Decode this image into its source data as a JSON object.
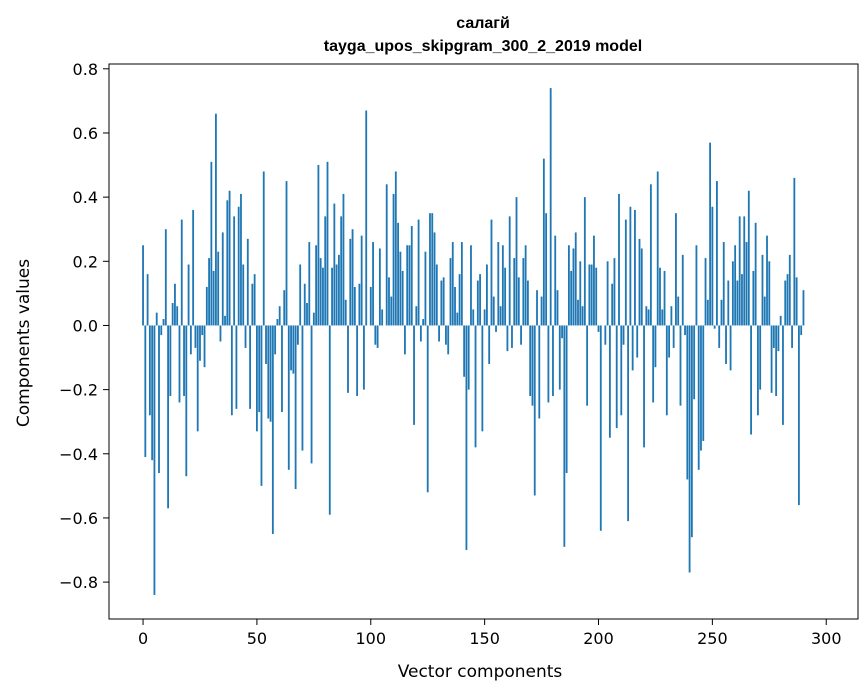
{
  "chart_data": {
    "type": "bar",
    "title_line1": "салагй",
    "title_line2": "tayga_upos_skipgram_300_2_2019 model",
    "xlabel": "Vector components",
    "ylabel": "Components values",
    "xlim": [
      -14.95,
      313.95
    ],
    "ylim": [
      -0.915,
      0.815
    ],
    "x_ticks": [
      0,
      50,
      100,
      150,
      200,
      250,
      300
    ],
    "x_tick_labels": [
      "0",
      "50",
      "100",
      "150",
      "200",
      "250",
      "300"
    ],
    "y_ticks": [
      -0.8,
      -0.6,
      -0.4,
      -0.2,
      0.0,
      0.2,
      0.4,
      0.6,
      0.8
    ],
    "y_tick_labels": [
      "−0.8",
      "−0.6",
      "−0.4",
      "−0.2",
      "0.0",
      "0.2",
      "0.4",
      "0.6",
      "0.8"
    ],
    "bar_color": "#1f77b4",
    "values": [
      0.25,
      -0.41,
      0.16,
      -0.28,
      -0.42,
      -0.84,
      0.04,
      -0.46,
      -0.03,
      0.02,
      0.3,
      -0.57,
      -0.22,
      0.07,
      0.13,
      0.06,
      -0.24,
      0.33,
      -0.22,
      -0.47,
      0.19,
      -0.09,
      0.36,
      -0.07,
      -0.33,
      -0.11,
      -0.03,
      -0.13,
      0.12,
      0.21,
      0.51,
      0.17,
      0.66,
      0.23,
      -0.05,
      0.29,
      0.03,
      0.39,
      0.42,
      -0.28,
      0.34,
      -0.26,
      0.37,
      0.41,
      0.19,
      -0.07,
      0.27,
      -0.26,
      0.13,
      0.16,
      -0.33,
      -0.27,
      -0.5,
      0.48,
      -0.12,
      -0.29,
      -0.3,
      -0.65,
      -0.09,
      0.02,
      0.06,
      -0.27,
      0.11,
      0.45,
      -0.45,
      -0.14,
      -0.15,
      -0.51,
      -0.06,
      0.19,
      -0.39,
      0.13,
      0.07,
      0.26,
      -0.43,
      0.04,
      0.25,
      0.5,
      0.21,
      0.18,
      0.34,
      0.51,
      -0.59,
      0.18,
      0.38,
      0.19,
      0.22,
      0.34,
      0.41,
      0.08,
      -0.21,
      0.27,
      0.3,
      0.12,
      -0.22,
      0.13,
      0.28,
      -0.2,
      0.67,
      0.0,
      0.12,
      0.26,
      -0.06,
      -0.07,
      0.24,
      0.05,
      0.0,
      0.44,
      0.15,
      0.09,
      0.41,
      0.48,
      0.32,
      0.23,
      0.17,
      -0.09,
      0.25,
      0.25,
      0.31,
      -0.31,
      0.06,
      0.33,
      -0.05,
      0.02,
      0.23,
      -0.52,
      0.35,
      0.35,
      0.29,
      0.19,
      -0.05,
      0.14,
      0.15,
      -0.06,
      -0.09,
      0.21,
      0.26,
      0.12,
      0.04,
      0.16,
      0.26,
      -0.16,
      -0.7,
      -0.2,
      0.25,
      0.05,
      -0.38,
      0.14,
      0.16,
      -0.33,
      0.05,
      0.19,
      -0.12,
      0.33,
      0.09,
      -0.02,
      0.26,
      0.06,
      0.25,
      0.18,
      -0.08,
      0.34,
      -0.07,
      0.21,
      0.4,
      0.15,
      -0.06,
      0.21,
      0.25,
      0.14,
      -0.22,
      -0.25,
      -0.53,
      0.11,
      -0.29,
      0.09,
      0.52,
      0.35,
      -0.24,
      0.74,
      -0.22,
      0.28,
      0.11,
      -0.2,
      -0.04,
      -0.69,
      -0.46,
      0.25,
      0.17,
      0.24,
      0.29,
      0.08,
      0.2,
      0.06,
      0.4,
      -0.25,
      0.19,
      0.19,
      0.28,
      0.18,
      -0.02,
      -0.64,
      0.0,
      -0.06,
      0.2,
      -0.35,
      0.13,
      0.21,
      -0.32,
      0.41,
      -0.28,
      -0.06,
      0.33,
      -0.61,
      0.37,
      -0.14,
      0.36,
      -0.1,
      0.27,
      0.24,
      -0.38,
      0.06,
      0.05,
      0.44,
      -0.24,
      -0.13,
      0.48,
      0.18,
      0.05,
      0.17,
      -0.28,
      -0.1,
      0.06,
      -0.07,
      0.35,
      0.09,
      -0.25,
      0.22,
      -0.03,
      -0.48,
      -0.77,
      -0.66,
      -0.23,
      0.25,
      -0.45,
      -0.39,
      -0.36,
      0.21,
      0.08,
      0.57,
      0.37,
      -0.01,
      0.45,
      -0.07,
      0.08,
      0.26,
      -0.12,
      0.14,
      -0.14,
      0.2,
      0.25,
      0.14,
      0.34,
      0.16,
      0.34,
      0.26,
      0.42,
      -0.34,
      0.17,
      0.32,
      -0.28,
      -0.2,
      0.22,
      0.09,
      0.28,
      0.2,
      -0.21,
      -0.07,
      -0.22,
      -0.08,
      0.03,
      -0.31,
      0.14,
      0.16,
      0.22,
      -0.07,
      0.46,
      0.15,
      -0.56,
      -0.03,
      0.11
    ]
  }
}
